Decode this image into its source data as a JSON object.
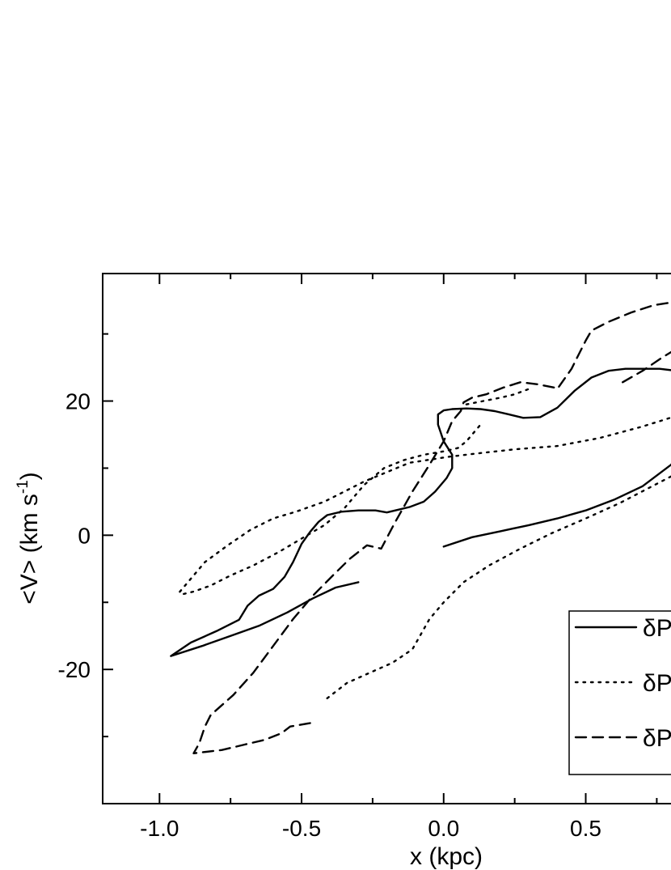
{
  "chart_data": {
    "type": "line",
    "title": "",
    "xlabel": "x (kpc)",
    "ylabel_main": "<V> (km s",
    "ylabel_sup": "-1",
    "ylabel_close": ")",
    "xlim": [
      -1.2,
      0.82
    ],
    "ylim": [
      -40,
      39
    ],
    "xticks_major": [
      -1.0,
      -0.5,
      0.0,
      0.5
    ],
    "xtick_labels": [
      "-1.0",
      "-0.5",
      "0.0",
      "0.5"
    ],
    "yticks_major": [
      -20,
      0,
      20
    ],
    "ytick_labels": [
      "-20",
      "0",
      "20"
    ],
    "xticks_minor": [
      -0.75,
      -0.25,
      0.25,
      0.75
    ],
    "yticks_minor": [
      -30,
      -10,
      10,
      30
    ],
    "legend": {
      "placement": "bottom-right",
      "entries": [
        {
          "label": "δP",
          "style": "solid"
        },
        {
          "label": "δP",
          "style": "dotted"
        },
        {
          "label": "δP",
          "style": "dashed"
        }
      ]
    },
    "series": [
      {
        "style": "solid",
        "x": [
          -0.3,
          -0.38,
          -0.46,
          -0.55,
          -0.65,
          -0.75,
          -0.85,
          -0.96,
          -0.89,
          -0.8,
          -0.72,
          -0.69,
          -0.65,
          -0.6,
          -0.56,
          -0.53,
          -0.5,
          -0.47,
          -0.44,
          -0.41,
          -0.36,
          -0.3,
          -0.24,
          -0.2,
          -0.17,
          -0.12,
          -0.07,
          -0.03,
          0.01,
          0.03,
          0.03,
          0.0,
          -0.02,
          -0.02,
          0.0,
          0.03,
          0.08,
          0.13,
          0.18,
          0.23,
          0.28,
          0.34,
          0.4,
          0.46,
          0.52,
          0.58,
          0.64,
          0.7,
          0.76,
          0.82
        ],
        "y": [
          -7.0,
          -7.8,
          -9.4,
          -11.5,
          -13.5,
          -15.0,
          -16.5,
          -18.0,
          -16.0,
          -14.3,
          -12.6,
          -10.5,
          -9.0,
          -8.0,
          -6.2,
          -4.0,
          -1.3,
          0.5,
          2.0,
          3.0,
          3.5,
          3.7,
          3.7,
          3.4,
          3.7,
          4.2,
          5.0,
          6.5,
          8.5,
          10.0,
          12.0,
          14.0,
          16.5,
          18.0,
          18.6,
          18.8,
          18.9,
          18.8,
          18.5,
          18.0,
          17.5,
          17.6,
          19.0,
          21.5,
          23.5,
          24.5,
          24.8,
          24.8,
          24.8,
          24.5
        ]
      },
      {
        "style": "solid",
        "x": [
          0.0,
          0.1,
          0.2,
          0.3,
          0.4,
          0.5,
          0.6,
          0.7,
          0.8,
          0.82
        ],
        "y": [
          -1.7,
          -0.3,
          0.6,
          1.5,
          2.5,
          3.7,
          5.3,
          7.3,
          10.5,
          11.5
        ]
      },
      {
        "style": "dotted",
        "x": [
          -0.41,
          -0.34,
          -0.26,
          -0.18,
          -0.11,
          -0.05,
          0.0,
          0.07,
          0.16,
          0.27,
          0.38,
          0.5,
          0.62,
          0.72,
          0.82
        ],
        "y": [
          -24.3,
          -22.0,
          -20.5,
          -19.0,
          -17.0,
          -12.5,
          -10.0,
          -7.0,
          -4.5,
          -2.0,
          0.3,
          2.5,
          4.8,
          7.0,
          9.2
        ]
      },
      {
        "style": "dotted",
        "x": [
          0.82,
          0.7,
          0.55,
          0.4,
          0.25,
          0.12,
          0.02,
          -0.12,
          -0.28,
          -0.42,
          -0.52,
          -0.6,
          -0.68,
          -0.76,
          -0.84,
          -0.89,
          -0.93,
          -0.92,
          -0.88,
          -0.82,
          -0.75,
          -0.67,
          -0.58,
          -0.5,
          -0.42,
          -0.35,
          -0.28,
          -0.21,
          -0.14,
          -0.07,
          0.0,
          0.05,
          0.08,
          0.13
        ],
        "y": [
          17.8,
          16.2,
          14.5,
          13.3,
          12.8,
          12.2,
          11.7,
          10.8,
          8.0,
          5.0,
          3.5,
          2.5,
          0.8,
          -1.5,
          -4.0,
          -6.5,
          -8.5,
          -8.8,
          -8.4,
          -7.5,
          -6.0,
          -4.5,
          -2.5,
          -0.5,
          1.5,
          4.0,
          7.5,
          10.0,
          11.2,
          12.0,
          12.5,
          13.0,
          14.0,
          16.5
        ]
      },
      {
        "style": "dotted",
        "x": [
          0.08,
          0.14,
          0.2,
          0.25,
          0.3
        ],
        "y": [
          19.5,
          20.0,
          20.5,
          21.0,
          21.8
        ]
      },
      {
        "style": "dashed",
        "x": [
          -0.47,
          -0.54,
          -0.57,
          -0.63,
          -0.7,
          -0.78,
          -0.88,
          -0.86,
          -0.84,
          -0.82,
          -0.74,
          -0.67,
          -0.6,
          -0.53,
          -0.46,
          -0.39,
          -0.33,
          -0.27,
          -0.22,
          -0.17,
          -0.11,
          -0.05,
          0.0,
          0.03,
          0.06,
          0.07,
          0.1,
          0.15,
          0.21,
          0.27,
          0.33,
          0.39,
          0.4,
          0.42,
          0.45,
          0.47,
          0.5,
          0.52,
          0.58,
          0.66,
          0.74,
          0.82
        ],
        "y": [
          -28.0,
          -28.5,
          -29.5,
          -30.5,
          -31.2,
          -32.0,
          -32.5,
          -31.0,
          -28.5,
          -26.8,
          -23.8,
          -20.5,
          -16.5,
          -12.5,
          -9.0,
          -6.0,
          -3.5,
          -1.5,
          -2.0,
          2.0,
          6.5,
          10.5,
          14.0,
          17.0,
          18.5,
          19.8,
          20.5,
          21.0,
          22.0,
          22.8,
          22.5,
          22.0,
          21.8,
          23.0,
          24.8,
          26.5,
          29.0,
          30.5,
          31.8,
          33.2,
          34.3,
          34.8
        ]
      },
      {
        "style": "dashed",
        "x": [
          0.63,
          0.7,
          0.77,
          0.82
        ],
        "y": [
          22.8,
          24.5,
          26.5,
          27.8
        ]
      }
    ]
  }
}
